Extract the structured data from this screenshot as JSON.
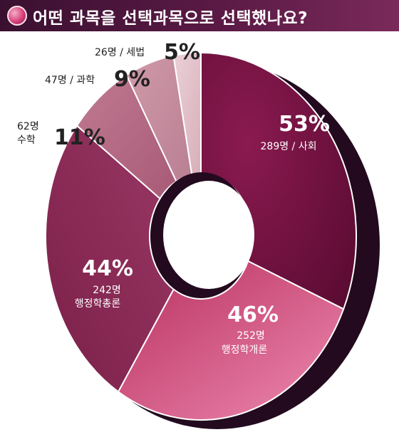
{
  "title": "어떤 과목을 선택과목으로 선택했나요?",
  "colors": {
    "title_bar": "#4a1538",
    "shadow": "#230a1e",
    "sociology": "#6e0f3e",
    "admin_intro": "#c93e6f",
    "admin_general": "#8c2a56",
    "math": "#b3657f",
    "science": "#c48a9c",
    "tax_law": "#e1bfc8"
  },
  "chart_data": {
    "type": "pie",
    "title": "어떤 과목을 선택과목으로 선택했나요?",
    "slices": [
      {
        "name": "사회",
        "percent_label": "53%",
        "count_label": "289명",
        "value": 289
      },
      {
        "name": "행정학개론",
        "percent_label": "46%",
        "count_label": "252명",
        "value": 252
      },
      {
        "name": "행정학총론",
        "percent_label": "44%",
        "count_label": "242명",
        "value": 242
      },
      {
        "name": "수학",
        "percent_label": "11%",
        "count_label": "62명",
        "value": 62
      },
      {
        "name": "과학",
        "percent_label": "9%",
        "count_label": "47명",
        "value": 47
      },
      {
        "name": "세법",
        "percent_label": "5%",
        "count_label": "26명",
        "value": 26
      }
    ],
    "separator": "/"
  }
}
